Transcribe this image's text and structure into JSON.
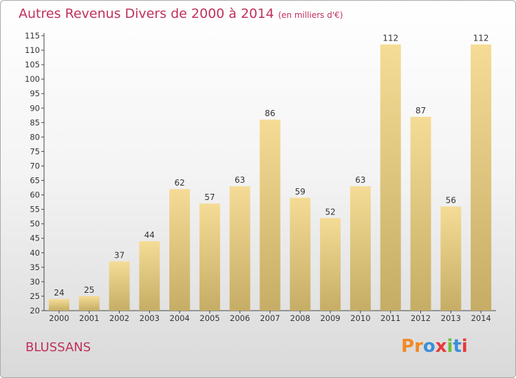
{
  "header": {
    "title": "Autres Revenus Divers de 2000 à 2014",
    "unit": "(en milliers d'€)"
  },
  "footer": {
    "commune": "BLUSSANS",
    "logo": "Proxiti"
  },
  "colors": {
    "title": "#c0305a",
    "bar_light": "#f5dc96",
    "bar_dark": "#c6ad65",
    "logo_letters": [
      "#f08a24",
      "#f08a24",
      "#3a8fd8",
      "#e83a3a",
      "#6cbf3a",
      "#3a8fd8",
      "#e83a3a"
    ]
  },
  "chart_data": {
    "type": "bar",
    "categories": [
      "2000",
      "2001",
      "2002",
      "2003",
      "2004",
      "2005",
      "2006",
      "2007",
      "2008",
      "2009",
      "2010",
      "2011",
      "2012",
      "2013",
      "2014"
    ],
    "values": [
      24,
      25,
      37,
      44,
      62,
      57,
      63,
      86,
      59,
      52,
      63,
      112,
      87,
      56,
      112
    ],
    "title": "Autres Revenus Divers de 2000 à 2014",
    "ylim": [
      20,
      115
    ],
    "yticks": [
      20,
      25,
      30,
      35,
      40,
      45,
      50,
      55,
      60,
      65,
      70,
      75,
      80,
      85,
      90,
      95,
      100,
      105,
      110,
      115
    ],
    "grid": false,
    "legend": "none"
  }
}
